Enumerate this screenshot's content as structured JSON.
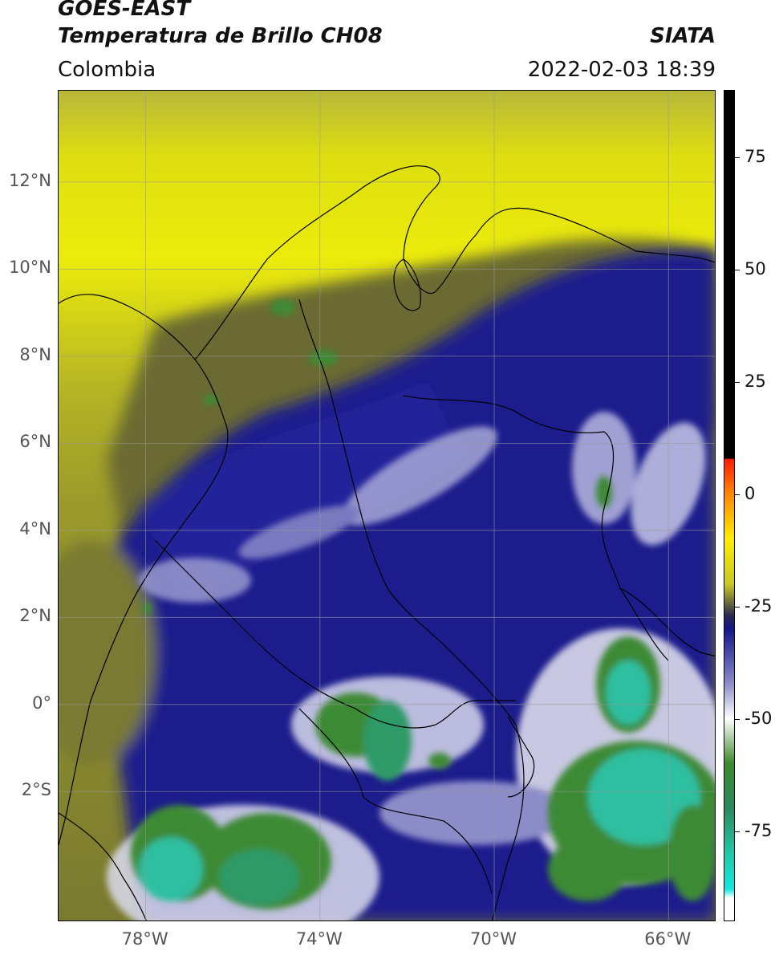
{
  "header": {
    "satellite": "GOES-EAST",
    "product": "Temperatura de Brillo CH08",
    "region": "Colombia",
    "agency": "SIATA",
    "timestamp": "2022-02-03 18:39"
  },
  "map": {
    "lon_range": [
      -80,
      -64.9
    ],
    "lat_range": [
      -5.0,
      14.1
    ],
    "lat_ticks": [
      {
        "label": "12°N",
        "value": 12
      },
      {
        "label": "10°N",
        "value": 10
      },
      {
        "label": "8°N",
        "value": 8
      },
      {
        "label": "6°N",
        "value": 6
      },
      {
        "label": "4°N",
        "value": 4
      },
      {
        "label": "2°N",
        "value": 2
      },
      {
        "label": "0°",
        "value": 0
      },
      {
        "label": "2°S",
        "value": -2
      }
    ],
    "lon_ticks": [
      {
        "label": "78°W",
        "value": -78
      },
      {
        "label": "74°W",
        "value": -74
      },
      {
        "label": "70°W",
        "value": -70
      },
      {
        "label": "66°W",
        "value": -66
      }
    ],
    "grid": true,
    "colors": {
      "warm_yellow": "#e8e80a",
      "olive": "#8f8f2a",
      "dark_olive": "#5a5a30",
      "deep_blue": "#1a1a8a",
      "mid_blue": "#3a3aa8",
      "white": "#f2f2f6",
      "green": "#3d8a35",
      "cyan_green": "#2fbfa0"
    }
  },
  "colorbar": {
    "range": [
      -95,
      90
    ],
    "tick_labels": [
      {
        "label": "75",
        "value": 75
      },
      {
        "label": "50",
        "value": 50
      },
      {
        "label": "25",
        "value": 25
      },
      {
        "label": "0",
        "value": 0
      },
      {
        "label": "-25",
        "value": -25
      },
      {
        "label": "-50",
        "value": -50
      },
      {
        "label": "-75",
        "value": -75
      }
    ],
    "stops": [
      {
        "value": 90,
        "color": "#000000"
      },
      {
        "value": 8,
        "color": "#000000"
      },
      {
        "value": 7.9,
        "color": "#ff1a00"
      },
      {
        "value": 0,
        "color": "#ff8800"
      },
      {
        "value": -10,
        "color": "#ffee00"
      },
      {
        "value": -20,
        "color": "#c8c820"
      },
      {
        "value": -27,
        "color": "#2a2a50"
      },
      {
        "value": -30,
        "color": "#14148c"
      },
      {
        "value": -42,
        "color": "#8a8ac8"
      },
      {
        "value": -50,
        "color": "#ffffff"
      },
      {
        "value": -60,
        "color": "#3a8a2a"
      },
      {
        "value": -70,
        "color": "#2a8a60"
      },
      {
        "value": -80,
        "color": "#20c8a8"
      },
      {
        "value": -88,
        "color": "#10e8e0"
      },
      {
        "value": -90,
        "color": "#ffffff"
      },
      {
        "value": -95,
        "color": "#ffffff"
      }
    ]
  }
}
